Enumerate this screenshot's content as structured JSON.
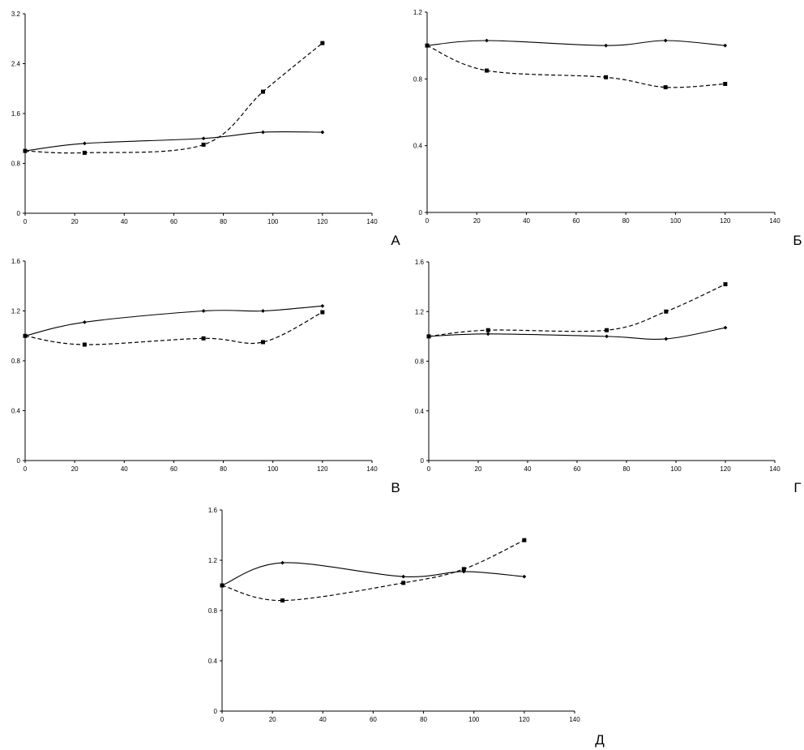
{
  "chart_data": [
    {
      "type": "line",
      "panel_label": "А",
      "xlim": [
        0,
        140
      ],
      "x_ticks": [
        0,
        20,
        40,
        60,
        80,
        100,
        120,
        140
      ],
      "ylim": [
        0,
        3.2
      ],
      "y_ticks": [
        0,
        0.8,
        1.6,
        2.4,
        3.2
      ],
      "y_tick_labels": [
        "0",
        "0.8",
        "1.6",
        "2.4",
        "3.2"
      ],
      "series": [
        {
          "style": "solid",
          "marker": "diamond",
          "x": [
            0,
            24,
            72,
            96,
            120
          ],
          "y": [
            1.0,
            1.12,
            1.2,
            1.3,
            1.3
          ]
        },
        {
          "style": "dashed",
          "marker": "square",
          "x": [
            0,
            24,
            72,
            96,
            120
          ],
          "y": [
            1.0,
            0.97,
            1.1,
            1.95,
            2.73
          ]
        }
      ]
    },
    {
      "type": "line",
      "panel_label": "Б",
      "xlim": [
        0,
        140
      ],
      "x_ticks": [
        0,
        20,
        40,
        60,
        80,
        100,
        120,
        140
      ],
      "ylim": [
        0,
        1.2
      ],
      "y_ticks": [
        0,
        0.4,
        0.8,
        1.2
      ],
      "y_tick_labels": [
        "0",
        "0.4",
        "0.8",
        "1.2"
      ],
      "series": [
        {
          "style": "solid",
          "marker": "diamond",
          "x": [
            0,
            24,
            72,
            96,
            120
          ],
          "y": [
            1.0,
            1.03,
            1.0,
            1.03,
            1.0
          ]
        },
        {
          "style": "dashed",
          "marker": "square",
          "x": [
            0,
            24,
            72,
            96,
            120
          ],
          "y": [
            1.0,
            0.85,
            0.81,
            0.75,
            0.77
          ]
        }
      ]
    },
    {
      "type": "line",
      "panel_label": "В",
      "xlim": [
        0,
        140
      ],
      "x_ticks": [
        0,
        20,
        40,
        60,
        80,
        100,
        120,
        140
      ],
      "ylim": [
        0,
        1.6
      ],
      "y_ticks": [
        0,
        0.4,
        0.8,
        1.2,
        1.6
      ],
      "y_tick_labels": [
        "0",
        "0.4",
        "0.8",
        "1.2",
        "1.6"
      ],
      "series": [
        {
          "style": "solid",
          "marker": "diamond",
          "x": [
            0,
            24,
            72,
            96,
            120
          ],
          "y": [
            1.0,
            1.11,
            1.2,
            1.2,
            1.24
          ]
        },
        {
          "style": "dashed",
          "marker": "square",
          "x": [
            0,
            24,
            72,
            96,
            120
          ],
          "y": [
            1.0,
            0.93,
            0.98,
            0.95,
            1.19
          ]
        }
      ]
    },
    {
      "type": "line",
      "panel_label": "Г",
      "xlim": [
        0,
        140
      ],
      "x_ticks": [
        0,
        20,
        40,
        60,
        80,
        100,
        120,
        140
      ],
      "ylim": [
        0,
        1.6
      ],
      "y_ticks": [
        0,
        0.4,
        0.8,
        1.2,
        1.6
      ],
      "y_tick_labels": [
        "0",
        "0.4",
        "0.8",
        "1.2",
        "1.6"
      ],
      "series": [
        {
          "style": "solid",
          "marker": "diamond",
          "x": [
            0,
            24,
            72,
            96,
            120
          ],
          "y": [
            1.0,
            1.02,
            1.0,
            0.98,
            1.07
          ]
        },
        {
          "style": "dashed",
          "marker": "square",
          "x": [
            0,
            24,
            72,
            96,
            120
          ],
          "y": [
            1.0,
            1.05,
            1.05,
            1.2,
            1.42
          ]
        }
      ]
    },
    {
      "type": "line",
      "panel_label": "Д",
      "xlim": [
        0,
        140
      ],
      "x_ticks": [
        0,
        20,
        40,
        60,
        80,
        100,
        120,
        140
      ],
      "ylim": [
        0,
        1.6
      ],
      "y_ticks": [
        0,
        0.4,
        0.8,
        1.2,
        1.6
      ],
      "y_tick_labels": [
        "0",
        "0.4",
        "0.8",
        "1.2",
        "1.6"
      ],
      "series": [
        {
          "style": "solid",
          "marker": "diamond",
          "x": [
            0,
            24,
            72,
            96,
            120
          ],
          "y": [
            1.0,
            1.18,
            1.07,
            1.11,
            1.07
          ]
        },
        {
          "style": "dashed",
          "marker": "square",
          "x": [
            0,
            24,
            72,
            96,
            120
          ],
          "y": [
            1.0,
            0.88,
            1.02,
            1.13,
            1.36
          ]
        }
      ]
    }
  ]
}
